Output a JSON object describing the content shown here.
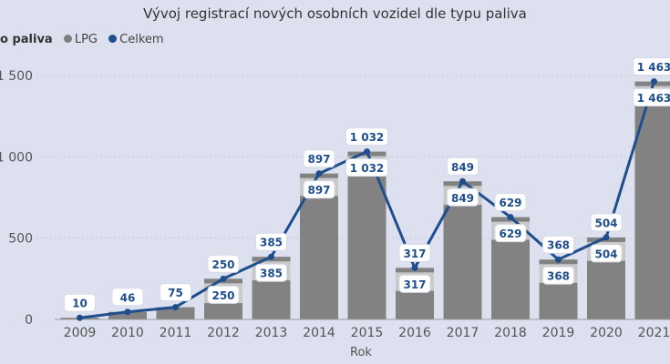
{
  "chart_data": {
    "type": "bar",
    "title": "Vývoj registrací nových osobních vozidel dle typu paliva",
    "legend": {
      "title": "o paliva",
      "placement": "top-left",
      "entries": [
        {
          "name": "LPG",
          "color": "#7f7f7f"
        },
        {
          "name": "Celkem",
          "color": "#1f4e8c"
        }
      ]
    },
    "xlabel": "Rok",
    "ylabel": "",
    "ylim": [
      0,
      1500
    ],
    "yticks": [
      0,
      500,
      1000,
      1500
    ],
    "ytick_labels": [
      "0",
      "500",
      "1 000",
      "1 500"
    ],
    "categories": [
      "2009",
      "2010",
      "2011",
      "2012",
      "2013",
      "2014",
      "2015",
      "2016",
      "2017",
      "2018",
      "2019",
      "2020",
      "2021"
    ],
    "series": [
      {
        "name": "LPG",
        "type": "bar",
        "values": [
          10,
          46,
          75,
          250,
          385,
          897,
          1032,
          317,
          849,
          629,
          368,
          504,
          1463
        ],
        "labels": [
          "",
          "",
          "",
          "250",
          "385",
          "897",
          "1 032",
          "317",
          "849",
          "629",
          "368",
          "504",
          "1 463"
        ],
        "color": "#7f7f7f",
        "dark_segment": [
          10,
          46,
          75,
          100,
          240,
          760,
          890,
          175,
          705,
          490,
          225,
          360,
          1320
        ],
        "dark_color": "#828282",
        "light_color": "#c9c9c9"
      },
      {
        "name": "Celkem",
        "type": "line",
        "values": [
          10,
          46,
          75,
          250,
          385,
          897,
          1032,
          317,
          849,
          629,
          368,
          504,
          1463
        ],
        "labels": [
          "10",
          "46",
          "75",
          "250",
          "385",
          "897",
          "1 032",
          "317",
          "849",
          "629",
          "368",
          "504",
          "1 463"
        ],
        "color": "#1f4e8c"
      }
    ]
  }
}
